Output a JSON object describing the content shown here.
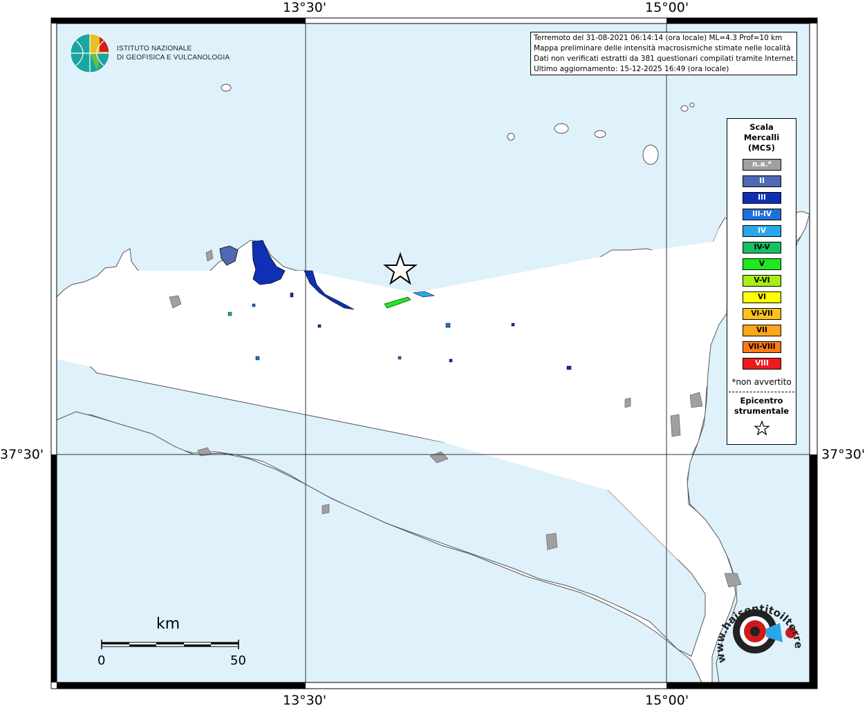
{
  "coords": {
    "top_left_lon": "13°30'",
    "top_right_lon": "15°00'",
    "bottom_left_lon": "13°30'",
    "bottom_right_lon": "15°00'",
    "left_lat": "37°30'",
    "right_lat": "37°30'"
  },
  "info": {
    "line1": "Terremoto del 31-08-2021 06:14:14 (ora locale) ML=4.3 Prof=10 km",
    "line2": "Mappa preliminare delle intensità macrosismiche stimate nelle località",
    "line3": "Dati non verificati estratti da 381 questionari compilati tramite Internet.",
    "line4": "Ultimo aggiornamento: 15-12-2025 16:49 (ora locale)"
  },
  "logo": {
    "line1": "ISTITUTO NAZIONALE",
    "line2": "DI GEOFISICA E VULCANOLOGIA"
  },
  "legend": {
    "title1": "Scala",
    "title2": "Mercalli",
    "title3": "(MCS)",
    "items": [
      {
        "label": "n.a.*",
        "color": "#a0a0a0",
        "text": "#ffffff"
      },
      {
        "label": "II",
        "color": "#4f6ab2",
        "text": "#ffffff"
      },
      {
        "label": "III",
        "color": "#0f2fb5",
        "text": "#ffffff"
      },
      {
        "label": "III-IV",
        "color": "#1f6fd8",
        "text": "#ffffff"
      },
      {
        "label": "IV",
        "color": "#2aa7ea",
        "text": "#ffffff"
      },
      {
        "label": "IV-V",
        "color": "#19c060",
        "text": "#000000"
      },
      {
        "label": "V",
        "color": "#1fe81f",
        "text": "#000000"
      },
      {
        "label": "V-VI",
        "color": "#a8ee14",
        "text": "#000000"
      },
      {
        "label": "VI",
        "color": "#ffff00",
        "text": "#000000"
      },
      {
        "label": "VI-VII",
        "color": "#ffc21a",
        "text": "#000000"
      },
      {
        "label": "VII",
        "color": "#ffa51a",
        "text": "#000000"
      },
      {
        "label": "VII-VIII",
        "color": "#ff7a14",
        "text": "#000000"
      },
      {
        "label": "VIII",
        "color": "#ee1a1a",
        "text": "#ffffff"
      }
    ],
    "note": "*non avvertito",
    "epi1": "Epicentro",
    "epi2": "strumentale"
  },
  "scale": {
    "unit": "km",
    "start": "0",
    "end": "50"
  },
  "watermark": {
    "text": "www.haisentitoilterremoto.it"
  }
}
